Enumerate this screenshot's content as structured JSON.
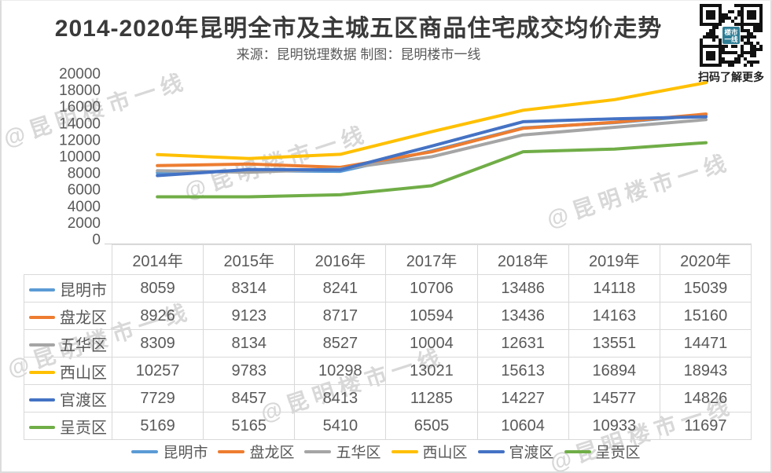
{
  "header": {
    "title": "2014-2020年昆明全市及主城五区商品住宅成交均价走势",
    "subtitle": "来源：昆明锐理数据 制图：昆明楼市一线",
    "qr_caption": "扫码了解更多",
    "qr_logo_line1": "楼市",
    "qr_logo_line2": "一线"
  },
  "watermark": {
    "text": "@昆明楼市一线"
  },
  "chart_data": {
    "type": "line",
    "title": "2014-2020年昆明全市及主城五区商品住宅成交均价走势",
    "categories": [
      "2014年",
      "2015年",
      "2016年",
      "2017年",
      "2018年",
      "2019年",
      "2020年"
    ],
    "series": [
      {
        "name": "昆明市",
        "color": "#5B9BD5",
        "values": [
          8059,
          8314,
          8241,
          10706,
          13486,
          14118,
          15039
        ]
      },
      {
        "name": "盘龙区",
        "color": "#ED7D31",
        "values": [
          8926,
          9123,
          8717,
          10594,
          13436,
          14163,
          15160
        ]
      },
      {
        "name": "五华区",
        "color": "#A5A5A5",
        "values": [
          8309,
          8134,
          8527,
          10004,
          12631,
          13551,
          14471
        ]
      },
      {
        "name": "西山区",
        "color": "#FFC000",
        "values": [
          10257,
          9783,
          10298,
          13021,
          15613,
          16894,
          18943
        ]
      },
      {
        "name": "官渡区",
        "color": "#4472C4",
        "values": [
          7729,
          8457,
          8413,
          11285,
          14227,
          14577,
          14826
        ]
      },
      {
        "name": "呈贡区",
        "color": "#70AD47",
        "values": [
          5169,
          5165,
          5410,
          6505,
          10604,
          10933,
          11697
        ]
      }
    ],
    "xlabel": "",
    "ylabel": "",
    "ylim": [
      0,
      20000
    ],
    "ytick_step": 2000,
    "yticks": [
      "0",
      "2000",
      "4000",
      "6000",
      "8000",
      "10000",
      "12000",
      "14000",
      "16000",
      "18000",
      "20000"
    ],
    "grid": false,
    "legend_position": "bottom",
    "show_data_table": true,
    "axis_label_color": "#595959",
    "axis_line_color": "#d9d9d9"
  }
}
